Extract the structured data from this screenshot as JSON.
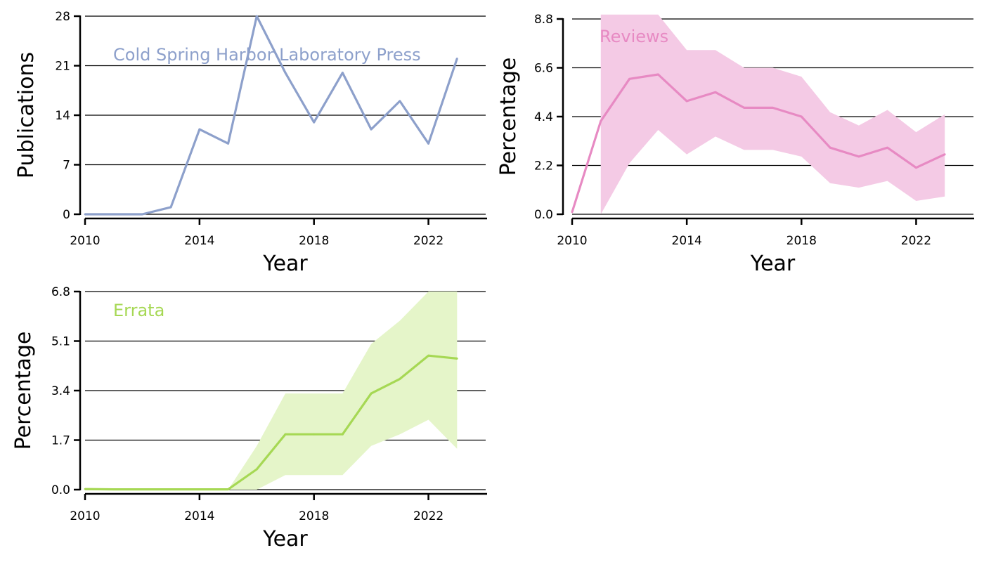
{
  "chart_data": [
    {
      "type": "line",
      "annotation": "Cold Spring Harbor Laboratory Press",
      "color": "#8DA0CB",
      "xlabel": "Year",
      "ylabel": "Publications",
      "xlim": [
        2010,
        2024
      ],
      "ylim": [
        0,
        28
      ],
      "xticks": [
        2010,
        2014,
        2018,
        2022
      ],
      "yticks": [
        0,
        7,
        14,
        21,
        28
      ],
      "ytick_labels": [
        "0",
        "7",
        "14",
        "21",
        "28"
      ],
      "grid": "horizontal",
      "series": [
        {
          "x": [
            2010,
            2011,
            2012,
            2013,
            2014,
            2015,
            2016,
            2017,
            2018,
            2019,
            2020,
            2021,
            2022,
            2023
          ],
          "y": [
            0,
            0,
            0,
            1,
            12,
            10,
            28,
            20,
            13,
            20,
            12,
            16,
            10,
            22
          ]
        }
      ]
    },
    {
      "type": "line",
      "annotation": "Reviews",
      "color": "#E78AC3",
      "band_color": "#F4CAE5",
      "xlabel": "Year",
      "ylabel": "Percentage",
      "xlim": [
        2010,
        2024
      ],
      "ylim": [
        0,
        8.8
      ],
      "xticks": [
        2010,
        2014,
        2018,
        2022
      ],
      "yticks": [
        0,
        2.2,
        4.4,
        6.6,
        8.8
      ],
      "ytick_labels": [
        "0.0",
        "2.2",
        "4.4",
        "6.6",
        "8.8"
      ],
      "grid": "horizontal",
      "series": [
        {
          "x": [
            2010,
            2011,
            2012,
            2013,
            2014,
            2015,
            2016,
            2017,
            2018,
            2019,
            2020,
            2021,
            2022,
            2023
          ],
          "y": [
            0.1,
            4.2,
            6.1,
            6.3,
            5.1,
            5.5,
            4.8,
            4.8,
            4.4,
            3.0,
            2.6,
            3.0,
            2.1,
            2.7
          ],
          "lower": [
            null,
            0.0,
            2.3,
            3.8,
            2.7,
            3.5,
            2.9,
            2.9,
            2.6,
            1.4,
            1.2,
            1.5,
            0.6,
            0.8
          ],
          "upper": [
            null,
            9.0,
            9.0,
            9.0,
            7.4,
            7.4,
            6.6,
            6.6,
            6.2,
            4.6,
            4.0,
            4.7,
            3.7,
            4.5
          ]
        }
      ]
    },
    {
      "type": "line",
      "annotation": "Errata",
      "color": "#A6D854",
      "band_color": "#E5F5C9",
      "xlabel": "Year",
      "ylabel": "Percentage",
      "xlim": [
        2010,
        2024
      ],
      "ylim": [
        0,
        6.8
      ],
      "xticks": [
        2010,
        2014,
        2018,
        2022
      ],
      "yticks": [
        0,
        1.7,
        3.4,
        5.1,
        6.8
      ],
      "ytick_labels": [
        "0.0",
        "1.7",
        "3.4",
        "5.1",
        "6.8"
      ],
      "grid": "horizontal",
      "series": [
        {
          "x": [
            2010,
            2011,
            2012,
            2013,
            2014,
            2015,
            2016,
            2017,
            2018,
            2019,
            2020,
            2021,
            2022,
            2023
          ],
          "y": [
            0.02,
            0.01,
            0.01,
            0.01,
            0.01,
            0.01,
            0.7,
            1.9,
            1.9,
            1.9,
            3.3,
            3.8,
            4.6,
            4.5
          ],
          "lower": [
            null,
            null,
            null,
            null,
            null,
            0.0,
            0.0,
            0.5,
            0.5,
            0.5,
            1.5,
            1.9,
            2.4,
            1.4
          ],
          "upper": [
            null,
            null,
            null,
            null,
            null,
            0.0,
            1.5,
            3.3,
            3.3,
            3.3,
            5.0,
            5.8,
            6.8,
            6.8
          ]
        }
      ]
    }
  ]
}
